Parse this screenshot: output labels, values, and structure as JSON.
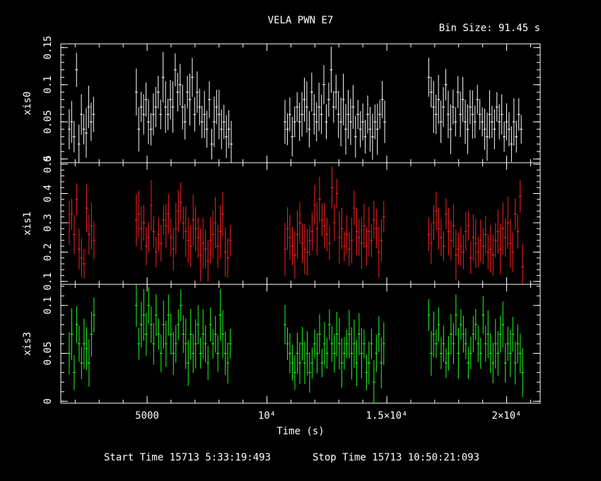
{
  "chart_data": {
    "type": "scatter",
    "title": "VELA PWN E7",
    "bin_size_label": "Bin Size: 91.45 s",
    "xlabel": "Time (s)",
    "xlim": [
      1400,
      21400
    ],
    "x_tick_labels": [
      "5000",
      "10⁴",
      "1.5×10⁴",
      "2×10⁴"
    ],
    "x_ticks": [
      5000,
      10000,
      15000,
      20000
    ],
    "start_time_label": "Start Time 15713  5:33:19:493",
    "stop_time_label": "Stop Time 15713 10:50:21:093",
    "panels": [
      {
        "name": "xis0",
        "color": "#ffffff",
        "ylim": [
          -0.005,
          0.155
        ],
        "ticks": [
          0,
          0.05,
          0.1,
          0.15
        ],
        "tick_labels": [
          "0",
          "0.05",
          "0.1",
          "0.15"
        ],
        "segments": [
          [
            1700,
            2800
          ],
          [
            4500,
            8500
          ],
          [
            10700,
            14900
          ],
          [
            16700,
            20800
          ]
        ],
        "values": [
          0.04,
          0.05,
          0.03,
          0.12,
          0.02,
          0.06,
          0.04,
          0.035,
          0.07,
          0.05,
          0.06,
          0.09,
          0.04,
          0.07,
          0.06,
          0.08,
          0.05,
          0.04,
          0.06,
          0.07,
          0.09,
          0.06,
          0.11,
          0.07,
          0.06,
          0.08,
          0.07,
          0.12,
          0.09,
          0.1,
          0.07,
          0.05,
          0.09,
          0.08,
          0.11,
          0.06,
          0.09,
          0.07,
          0.05,
          0.06,
          0.04,
          0.08,
          0.02,
          0.05,
          0.07,
          0.06,
          0.04,
          0.05,
          0.03,
          0.04,
          0.02,
          0.05,
          0.04,
          0.06,
          0.03,
          0.05,
          0.07,
          0.05,
          0.06,
          0.08,
          0.07,
          0.04,
          0.09,
          0.06,
          0.05,
          0.07,
          0.06,
          0.1,
          0.05,
          0.08,
          0.12,
          0.07,
          0.09,
          0.06,
          0.05,
          0.08,
          0.04,
          0.06,
          0.05,
          0.07,
          0.03,
          0.06,
          0.04,
          0.05,
          0.03,
          0.06,
          0.04,
          0.03,
          0.05,
          0.04,
          0.06,
          0.08,
          0.05,
          0.11,
          0.09,
          0.07,
          0.06,
          0.08,
          0.05,
          0.07,
          0.1,
          0.06,
          0.04,
          0.07,
          0.05,
          0.09,
          0.06,
          0.08,
          0.05,
          0.04,
          0.07,
          0.06,
          0.05,
          0.08,
          0.06,
          0.05,
          0.04,
          0.03,
          0.06,
          0.05,
          0.04,
          0.07,
          0.05,
          0.06,
          0.03,
          0.05,
          0.04,
          0.02,
          0.05,
          0.03,
          0.06,
          0.04
        ]
      },
      {
        "name": "xis1",
        "color": "#ff2020",
        "ylim": [
          0.09,
          0.505
        ],
        "ticks": [
          0.1,
          0.2,
          0.3,
          0.4,
          0.5
        ],
        "tick_labels": [
          "0.1",
          "0.2",
          "0.3",
          "0.4",
          "0.5"
        ],
        "segments": [
          [
            1700,
            2800
          ],
          [
            4500,
            8500
          ],
          [
            10700,
            14900
          ],
          [
            16700,
            20800
          ]
        ],
        "values": [
          0.3,
          0.33,
          0.26,
          0.38,
          0.21,
          0.18,
          0.16,
          0.35,
          0.26,
          0.29,
          0.24,
          0.31,
          0.33,
          0.28,
          0.3,
          0.22,
          0.25,
          0.36,
          0.27,
          0.2,
          0.26,
          0.23,
          0.31,
          0.29,
          0.33,
          0.25,
          0.21,
          0.28,
          0.34,
          0.37,
          0.3,
          0.27,
          0.24,
          0.22,
          0.31,
          0.28,
          0.25,
          0.19,
          0.23,
          0.21,
          0.17,
          0.24,
          0.26,
          0.3,
          0.22,
          0.27,
          0.33,
          0.2,
          0.18,
          0.24,
          0.21,
          0.28,
          0.25,
          0.22,
          0.19,
          0.26,
          0.3,
          0.23,
          0.21,
          0.2,
          0.24,
          0.27,
          0.36,
          0.28,
          0.38,
          0.31,
          0.29,
          0.26,
          0.23,
          0.42,
          0.3,
          0.4,
          0.25,
          0.28,
          0.22,
          0.26,
          0.21,
          0.24,
          0.35,
          0.27,
          0.25,
          0.23,
          0.29,
          0.22,
          0.27,
          0.24,
          0.31,
          0.28,
          0.2,
          0.24,
          0.32,
          0.26,
          0.23,
          0.3,
          0.34,
          0.28,
          0.25,
          0.22,
          0.33,
          0.27,
          0.24,
          0.29,
          0.19,
          0.21,
          0.22,
          0.2,
          0.27,
          0.29,
          0.18,
          0.25,
          0.23,
          0.2,
          0.24,
          0.22,
          0.26,
          0.2,
          0.21,
          0.19,
          0.24,
          0.27,
          0.21,
          0.28,
          0.25,
          0.3,
          0.23,
          0.2,
          0.33,
          0.27,
          0.39,
          0.15
        ]
      },
      {
        "name": "xis3",
        "color": "#20ff20",
        "ylim": [
          -0.002,
          0.122
        ],
        "ticks": [
          0,
          0.05,
          0.1
        ],
        "tick_labels": [
          "0",
          "0.05",
          "0.1"
        ],
        "segments": [
          [
            1700,
            2800
          ],
          [
            4500,
            8500
          ],
          [
            10700,
            14900
          ],
          [
            16700,
            20800
          ]
        ],
        "values": [
          0.05,
          0.07,
          0.03,
          0.08,
          0.06,
          0.04,
          0.06,
          0.055,
          0.04,
          0.07,
          0.09,
          0.1,
          0.06,
          0.08,
          0.09,
          0.07,
          0.1,
          0.08,
          0.06,
          0.09,
          0.07,
          0.05,
          0.08,
          0.06,
          0.09,
          0.07,
          0.05,
          0.06,
          0.08,
          0.1,
          0.07,
          0.06,
          0.04,
          0.07,
          0.05,
          0.06,
          0.08,
          0.05,
          0.07,
          0.06,
          0.04,
          0.08,
          0.06,
          0.07,
          0.05,
          0.09,
          0.07,
          0.05,
          0.04,
          0.06,
          0.08,
          0.06,
          0.05,
          0.04,
          0.03,
          0.05,
          0.04,
          0.06,
          0.04,
          0.05,
          0.03,
          0.04,
          0.06,
          0.05,
          0.07,
          0.04,
          0.06,
          0.05,
          0.08,
          0.06,
          0.05,
          0.07,
          0.06,
          0.04,
          0.05,
          0.06,
          0.07,
          0.05,
          0.06,
          0.04,
          0.07,
          0.05,
          0.06,
          0.03,
          0.04,
          0.06,
          0.02,
          0.05,
          0.07,
          0.04,
          0.06,
          0.09,
          0.05,
          0.07,
          0.06,
          0.08,
          0.05,
          0.06,
          0.04,
          0.05,
          0.07,
          0.06,
          0.09,
          0.05,
          0.08,
          0.07,
          0.06,
          0.04,
          0.05,
          0.07,
          0.08,
          0.06,
          0.05,
          0.09,
          0.06,
          0.07,
          0.05,
          0.04,
          0.06,
          0.05,
          0.07,
          0.08,
          0.04,
          0.06,
          0.05,
          0.07,
          0.04,
          0.06,
          0.05,
          0.03
        ]
      }
    ]
  }
}
